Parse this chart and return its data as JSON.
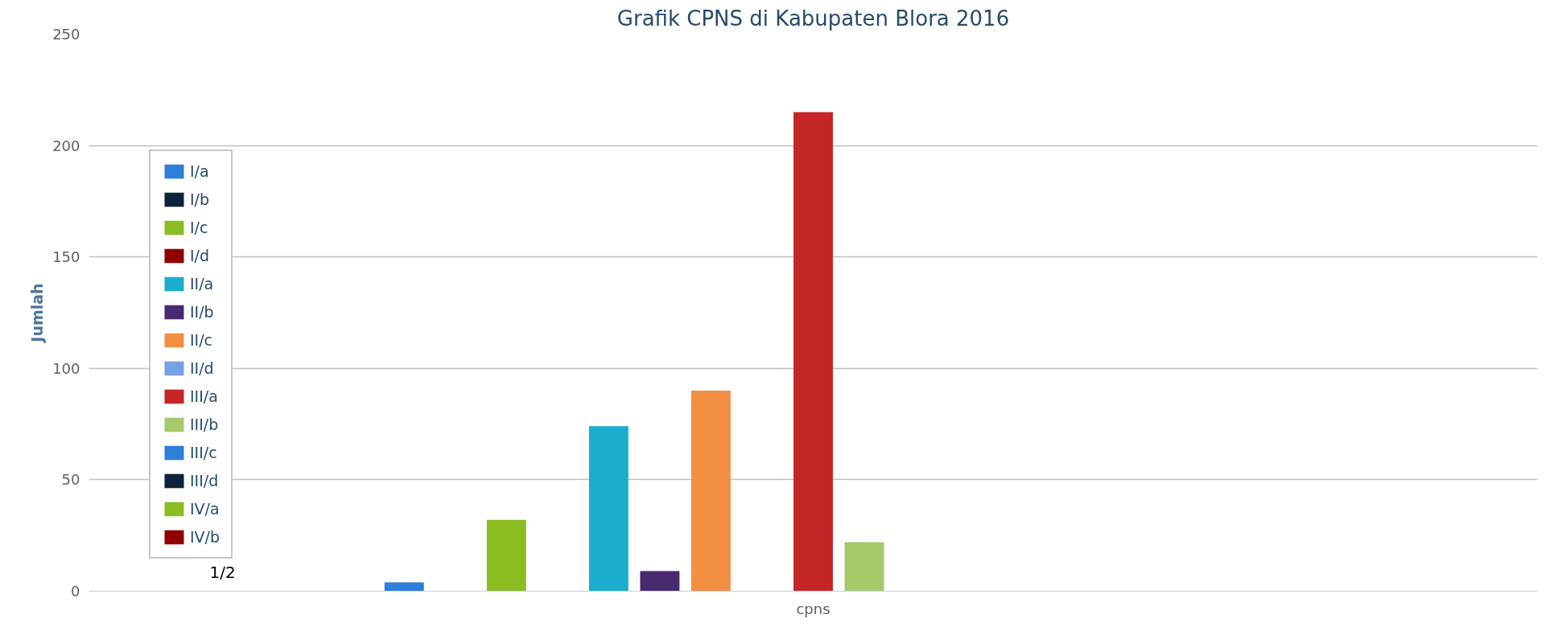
{
  "chart_data": {
    "type": "bar",
    "title": "Grafik CPNS di Kabupaten Blora 2016",
    "ylabel": "Jumlah",
    "categories": [
      "cpns"
    ],
    "series": [
      {
        "name": "I/a",
        "color": "#2f7ed8",
        "values": [
          4
        ]
      },
      {
        "name": "I/b",
        "color": "#0d233a",
        "values": [
          0
        ]
      },
      {
        "name": "I/c",
        "color": "#8bbc21",
        "values": [
          32
        ]
      },
      {
        "name": "I/d",
        "color": "#910000",
        "values": [
          0
        ]
      },
      {
        "name": "II/a",
        "color": "#1aadce",
        "values": [
          74
        ]
      },
      {
        "name": "II/b",
        "color": "#492970",
        "values": [
          9
        ]
      },
      {
        "name": "II/c",
        "color": "#f28f43",
        "values": [
          90
        ]
      },
      {
        "name": "II/d",
        "color": "#77a1e5",
        "values": [
          0
        ]
      },
      {
        "name": "III/a",
        "color": "#c42525",
        "values": [
          215
        ]
      },
      {
        "name": "III/b",
        "color": "#a6c96a",
        "values": [
          22
        ]
      },
      {
        "name": "III/c",
        "color": "#2f7ed8",
        "values": [
          0
        ]
      },
      {
        "name": "III/d",
        "color": "#0d233a",
        "values": [
          0
        ]
      },
      {
        "name": "IV/a",
        "color": "#8bbc21",
        "values": [
          0
        ]
      },
      {
        "name": "IV/b",
        "color": "#910000",
        "values": [
          0
        ]
      },
      {
        "color": "#1aadce",
        "values": [
          0
        ]
      },
      {
        "color": "#492970",
        "values": [
          0
        ]
      },
      {
        "color": "#f28f43",
        "values": [
          0
        ]
      }
    ],
    "ylim": [
      0,
      250
    ],
    "yticks": [
      0,
      50,
      100,
      150,
      200,
      250
    ],
    "grid": "y",
    "legend": "left",
    "annotations": [
      "1/2"
    ]
  }
}
